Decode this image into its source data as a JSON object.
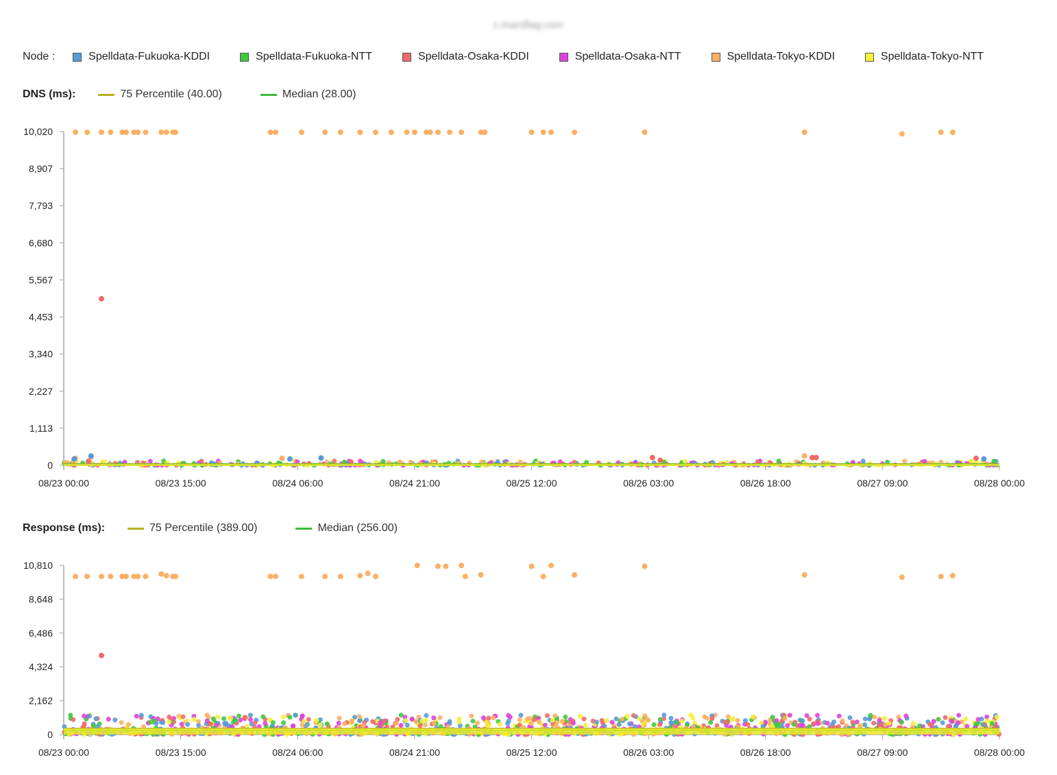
{
  "header": {
    "site_title": "c.marsflag.com"
  },
  "nodes": {
    "label": "Node :",
    "items": [
      {
        "name": "Spelldata-Fukuoka-KDDI",
        "color": "#5b9bd5"
      },
      {
        "name": "Spelldata-Fukuoka-NTT",
        "color": "#3fc93f"
      },
      {
        "name": "Spelldata-Osaka-KDDI",
        "color": "#ef6a6a"
      },
      {
        "name": "Spelldata-Osaka-NTT",
        "color": "#dd44dd"
      },
      {
        "name": "Spelldata-Tokyo-KDDI",
        "color": "#fbb065"
      },
      {
        "name": "Spelldata-Tokyo-NTT",
        "color": "#f5f03a"
      }
    ]
  },
  "dns": {
    "title": "DNS (ms):",
    "p75_label": "75 Percentile (40.00)",
    "median_label": "Median (28.00)",
    "p75_color": "#b5b020",
    "median_color": "#3fb83f"
  },
  "response": {
    "title": "Response (ms):",
    "p75_label": "75 Percentile (389.00)",
    "median_label": "Median (256.00)",
    "p75_color": "#b5b020",
    "median_color": "#3fb83f"
  },
  "chart_data": [
    {
      "type": "scatter",
      "title": "DNS (ms):",
      "xlim": [
        "08/23 00:00",
        "08/28 00:00"
      ],
      "ylim": [
        0,
        10020
      ],
      "x_ticks": [
        "08/23 00:00",
        "08/23 15:00",
        "08/24 06:00",
        "08/24 21:00",
        "08/25 12:00",
        "08/26 03:00",
        "08/26 18:00",
        "08/27 09:00",
        "08/28 00:00"
      ],
      "y_ticks": [
        "0",
        "1,113",
        "2,227",
        "3,340",
        "4,453",
        "5,567",
        "6,680",
        "7,793",
        "8,907",
        "10,020"
      ],
      "reference_lines": [
        {
          "name": "75 Percentile",
          "value": 40.0
        },
        {
          "name": "Median",
          "value": 28.0
        }
      ],
      "outliers": [
        {
          "series": "Spelldata-Tokyo-KDDI",
          "points": [
            [
              "08/23 01:30",
              10000
            ],
            [
              "08/23 03:00",
              10000
            ],
            [
              "08/23 04:50",
              10000
            ],
            [
              "08/23 06:00",
              10000
            ],
            [
              "08/23 07:30",
              10000
            ],
            [
              "08/23 08:00",
              10000
            ],
            [
              "08/23 09:00",
              10000
            ],
            [
              "08/23 09:30",
              10000
            ],
            [
              "08/23 10:30",
              10000
            ],
            [
              "08/23 12:30",
              10000
            ],
            [
              "08/23 13:10",
              10000
            ],
            [
              "08/23 14:00",
              10000
            ],
            [
              "08/23 14:20",
              10000
            ],
            [
              "08/24 02:30",
              10000
            ],
            [
              "08/24 03:10",
              10000
            ],
            [
              "08/24 06:30",
              10000
            ],
            [
              "08/24 09:30",
              10000
            ],
            [
              "08/24 11:30",
              10000
            ],
            [
              "08/24 14:00",
              10000
            ],
            [
              "08/24 16:00",
              10000
            ],
            [
              "08/24 18:00",
              10000
            ],
            [
              "08/24 20:00",
              10000
            ],
            [
              "08/24 21:00",
              10000
            ],
            [
              "08/24 22:30",
              10000
            ],
            [
              "08/24 23:00",
              10000
            ],
            [
              "08/25 00:00",
              10000
            ],
            [
              "08/25 01:30",
              10000
            ],
            [
              "08/25 03:00",
              10000
            ],
            [
              "08/25 05:30",
              10000
            ],
            [
              "08/25 06:00",
              10000
            ],
            [
              "08/25 12:00",
              10000
            ],
            [
              "08/25 13:30",
              10000
            ],
            [
              "08/25 14:30",
              10000
            ],
            [
              "08/25 17:30",
              10000
            ],
            [
              "08/26 02:30",
              10000
            ],
            [
              "08/26 23:00",
              10000
            ],
            [
              "08/27 11:30",
              9950
            ],
            [
              "08/27 16:30",
              10000
            ],
            [
              "08/27 18:00",
              10000
            ],
            [
              "08/23 01:30",
              210
            ],
            [
              "08/23 03:30",
              250
            ],
            [
              "08/24 04:00",
              210
            ],
            [
              "08/26 23:00",
              280
            ]
          ]
        },
        {
          "series": "Spelldata-Osaka-KDDI",
          "points": [
            [
              "08/23 04:50",
              5000
            ],
            [
              "08/23 03:10",
              120
            ],
            [
              "08/26 03:30",
              230
            ],
            [
              "08/26 04:30",
              150
            ],
            [
              "08/27 00:00",
              230
            ],
            [
              "08/27 00:30",
              230
            ],
            [
              "08/27 21:00",
              210
            ]
          ]
        },
        {
          "series": "Spelldata-Fukuoka-KDDI",
          "points": [
            [
              "08/23 01:20",
              190
            ],
            [
              "08/23 03:30",
              280
            ],
            [
              "08/24 05:00",
              190
            ],
            [
              "08/24 09:00",
              220
            ],
            [
              "08/27 22:00",
              190
            ]
          ]
        }
      ],
      "note_baseline": "dense cluster of points from all nodes between 0 and ~150 ms across the full range"
    },
    {
      "type": "scatter",
      "title": "Response (ms):",
      "xlim": [
        "08/23 00:00",
        "08/28 00:00"
      ],
      "ylim": [
        0,
        10810
      ],
      "x_ticks": [
        "08/23 00:00",
        "08/23 15:00",
        "08/24 06:00",
        "08/24 21:00",
        "08/25 12:00",
        "08/26 03:00",
        "08/26 18:00",
        "08/27 09:00",
        "08/28 00:00"
      ],
      "y_ticks": [
        "0",
        "2,162",
        "4,324",
        "6,486",
        "8,648",
        "10,810"
      ],
      "reference_lines": [
        {
          "name": "75 Percentile",
          "value": 389.0
        },
        {
          "name": "Median",
          "value": 256.0
        }
      ],
      "outliers": [
        {
          "series": "Spelldata-Tokyo-KDDI",
          "points": [
            [
              "08/23 01:30",
              10100
            ],
            [
              "08/23 03:00",
              10100
            ],
            [
              "08/23 04:50",
              10100
            ],
            [
              "08/23 06:00",
              10100
            ],
            [
              "08/23 07:30",
              10100
            ],
            [
              "08/23 08:00",
              10100
            ],
            [
              "08/23 09:00",
              10100
            ],
            [
              "08/23 09:30",
              10100
            ],
            [
              "08/23 10:30",
              10100
            ],
            [
              "08/23 12:30",
              10250
            ],
            [
              "08/23 13:10",
              10150
            ],
            [
              "08/23 14:00",
              10100
            ],
            [
              "08/23 14:20",
              10100
            ],
            [
              "08/24 02:30",
              10100
            ],
            [
              "08/24 03:10",
              10100
            ],
            [
              "08/24 06:30",
              10100
            ],
            [
              "08/24 09:30",
              10100
            ],
            [
              "08/24 11:30",
              10100
            ],
            [
              "08/24 14:00",
              10150
            ],
            [
              "08/24 15:00",
              10300
            ],
            [
              "08/24 16:00",
              10100
            ],
            [
              "08/24 21:20",
              10800
            ],
            [
              "08/25 00:00",
              10750
            ],
            [
              "08/25 01:00",
              10750
            ],
            [
              "08/25 03:00",
              10800
            ],
            [
              "08/25 03:30",
              10100
            ],
            [
              "08/25 05:30",
              10200
            ],
            [
              "08/25 12:00",
              10750
            ],
            [
              "08/25 13:30",
              10100
            ],
            [
              "08/25 14:30",
              10800
            ],
            [
              "08/25 17:30",
              10200
            ],
            [
              "08/26 02:30",
              10750
            ],
            [
              "08/26 23:00",
              10200
            ],
            [
              "08/27 11:30",
              10050
            ],
            [
              "08/27 16:30",
              10100
            ],
            [
              "08/27 18:00",
              10150
            ]
          ]
        },
        {
          "series": "Spelldata-Osaka-KDDI",
          "points": [
            [
              "08/23 04:50",
              5050
            ]
          ]
        }
      ],
      "note_baseline": "dense cluster of points from all nodes between 0 and ~1,300 ms across the full range"
    }
  ]
}
